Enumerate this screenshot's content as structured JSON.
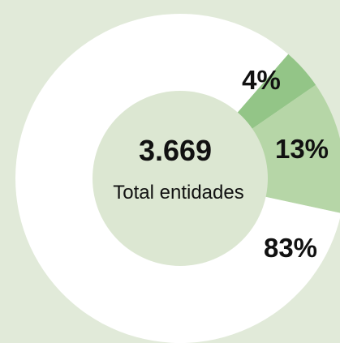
{
  "chart_data": {
    "type": "pie",
    "donut": true,
    "center_value": "3.669",
    "center_label": "Total entidades",
    "slices": [
      {
        "value": 4,
        "label": "4%",
        "color": "#93c587"
      },
      {
        "value": 13,
        "label": "13%",
        "color": "#b6d6a7"
      },
      {
        "value": 83,
        "label": "83%",
        "color": "#ffffff"
      }
    ],
    "background_color": "#e1ead9",
    "hole_color": "#dce7d2"
  }
}
